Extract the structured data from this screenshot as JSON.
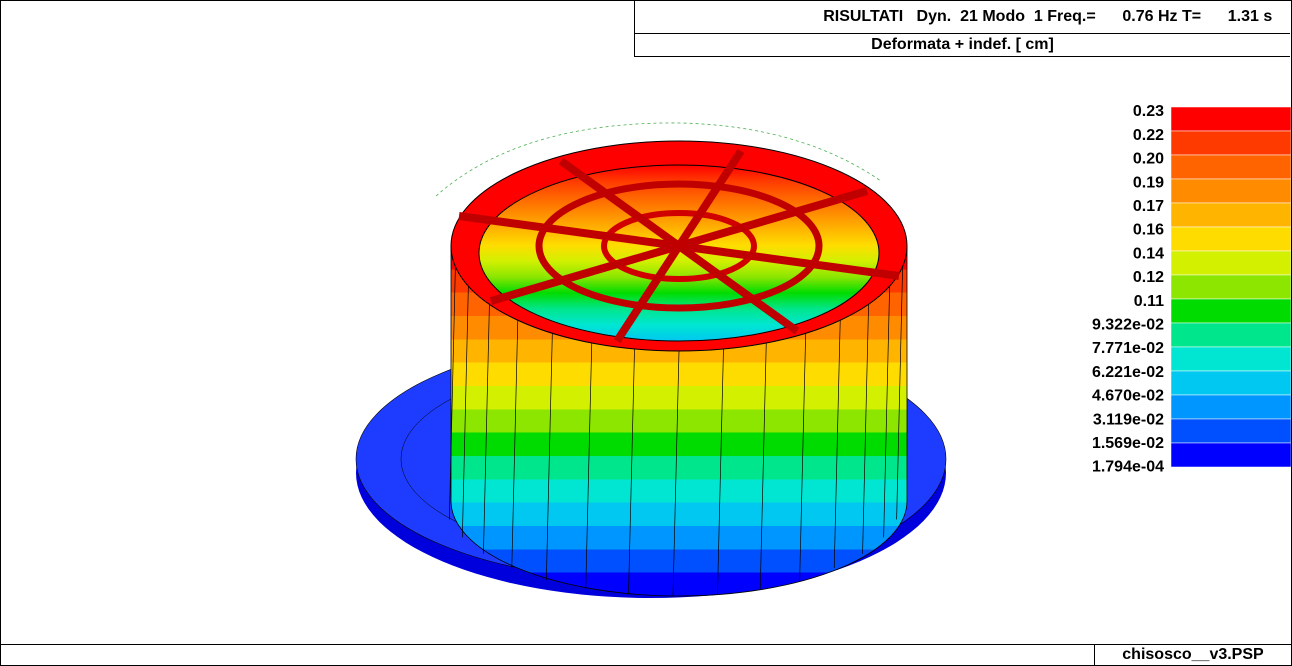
{
  "header": {
    "title": "RISULTATI",
    "mode": "Dyn.  21 Modo  1 Freq.=",
    "frequency": "0.76 Hz T=",
    "period": "1.31 s",
    "subtitle": "Deformata + indef.  [ cm]"
  },
  "legend": {
    "labels": [
      "0.23",
      "0.22",
      "0.20",
      "0.19",
      "0.17",
      "0.16",
      "0.14",
      "0.12",
      "0.11",
      "9.322e-02",
      "7.771e-02",
      "6.221e-02",
      "4.670e-02",
      "3.119e-02",
      "1.569e-02",
      "1.794e-04"
    ],
    "colors": [
      "#ff0000",
      "#ff3a00",
      "#ff6400",
      "#ff8c00",
      "#ffb400",
      "#ffdc00",
      "#d2f000",
      "#8ce600",
      "#00dc00",
      "#00e68c",
      "#00e6d2",
      "#00c8f0",
      "#0096ff",
      "#0050ff",
      "#0000ff"
    ]
  },
  "footer": {
    "filename": "chisosco__v3.PSP"
  }
}
